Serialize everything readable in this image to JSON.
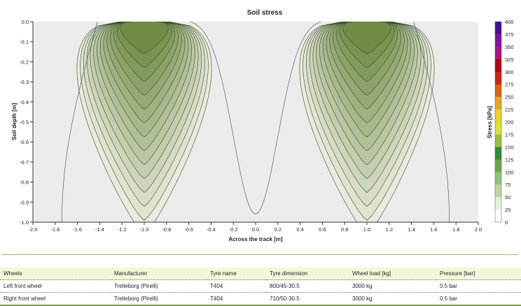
{
  "chart_data": {
    "type": "contour",
    "title": "Soil stress",
    "xlabel": "Across the track [m]",
    "ylabel": "Soil depth [m]",
    "xlim": [
      -2.0,
      2.0
    ],
    "ylim": [
      -1.0,
      0.0
    ],
    "x_ticks": [
      "-2.0",
      "-1.8",
      "-1.6",
      "-1.4",
      "-1.2",
      "-1.0",
      "-0.8",
      "-0.6",
      "-0.4",
      "-0.2",
      "0.0",
      "0.2",
      "0.4",
      "0.6",
      "0.8",
      "1.0",
      "1.2",
      "1.4",
      "1.6",
      "1.8",
      "2.0"
    ],
    "y_ticks": [
      "0.0",
      "-0.1",
      "-0.2",
      "-0.3",
      "-0.4",
      "-0.5",
      "-0.6",
      "-0.7",
      "-0.8",
      "-0.9",
      "-1.0"
    ],
    "colorbar": {
      "label": "Stress [kPa]",
      "range": [
        0,
        400
      ],
      "ticks": [
        "400",
        "375",
        "350",
        "325",
        "300",
        "275",
        "250",
        "225",
        "200",
        "175",
        "150",
        "125",
        "100",
        "75",
        "50",
        "25",
        "0"
      ]
    },
    "wheel_centers_x": [
      -1.0,
      1.0
    ],
    "grid": false,
    "background_color": "#ebebeb"
  },
  "table": {
    "headers": [
      "Wheels",
      "Manufacturer",
      "Tyre name",
      "Tyre dimension",
      "Wheel load [kg]",
      "Pressure [bar]"
    ],
    "rows": [
      [
        "Left front wheel",
        "Trelleborg (Pirelli)",
        "T404",
        "800/45-30.5",
        "3000 kg",
        "0.5 bar"
      ],
      [
        "Right front wheel",
        "Trelleborg (Pirelli)",
        "T404",
        "710/50-30.5",
        "3000 kg",
        "0.5 bar"
      ]
    ]
  }
}
